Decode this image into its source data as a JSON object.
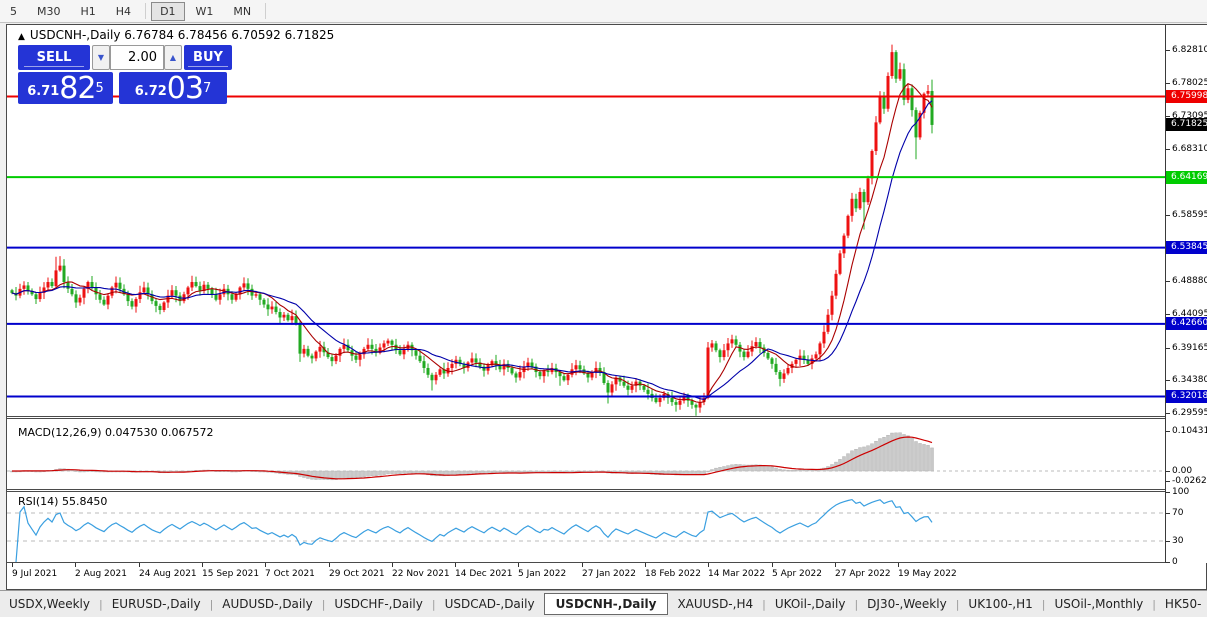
{
  "toolbar": {
    "timeframes": [
      "5",
      "M30",
      "H1",
      "H4",
      "D1",
      "W1",
      "MN"
    ],
    "active": "D1"
  },
  "chart": {
    "title_marker": "▲",
    "symbol_title": "USDCNH-,Daily",
    "ohlc": {
      "open": "6.76784",
      "high": "6.78456",
      "low": "6.70592",
      "close": "6.71825"
    },
    "trade_panel": {
      "sell_label": "SELL",
      "buy_label": "BUY",
      "volume": "2.00",
      "spin_down_icon": "▼",
      "spin_up_icon": "▲",
      "sell_price": {
        "small": "6.71",
        "big": "82",
        "sup": "5"
      },
      "buy_price": {
        "small": "6.72",
        "big": "03",
        "sup": "7"
      }
    },
    "axis_ticks": [
      {
        "price": 6.8281,
        "label": "6.82810"
      },
      {
        "price": 6.78025,
        "label": "6.78025"
      },
      {
        "price": 6.73095,
        "label": "6.73095"
      },
      {
        "price": 6.6831,
        "label": "6.68310"
      },
      {
        "price": 6.63525,
        "label": "6.63525"
      },
      {
        "price": 6.58595,
        "label": "6.58595"
      },
      {
        "price": 6.4888,
        "label": "6.48880"
      },
      {
        "price": 6.44095,
        "label": "6.44095"
      },
      {
        "price": 6.39165,
        "label": "6.39165"
      },
      {
        "price": 6.3438,
        "label": "6.34380"
      },
      {
        "price": 6.29595,
        "label": "6.29595"
      }
    ],
    "hlines": [
      {
        "price": 6.75998,
        "label": "6.75998",
        "color": "#ee0000",
        "text": "#fff"
      },
      {
        "price": 6.64169,
        "label": "6.64169",
        "color": "#00cc00",
        "text": "#fff"
      },
      {
        "price": 6.53845,
        "label": "6.53845",
        "color": "#0000cc",
        "text": "#fff"
      },
      {
        "price": 6.4266,
        "label": "6.42660",
        "color": "#0000cc",
        "text": "#fff"
      },
      {
        "price": 6.32018,
        "label": "6.32018",
        "color": "#0000cc",
        "text": "#fff"
      }
    ],
    "current_price_badge": {
      "price": 6.71825,
      "label": "6.71825",
      "color": "#000000",
      "text": "#fff"
    },
    "date_labels": [
      "9 Jul 2021",
      "2 Aug 2021",
      "24 Aug 2021",
      "15 Sep 2021",
      "7 Oct 2021",
      "29 Oct 2021",
      "22 Nov 2021",
      "14 Dec 2021",
      "5 Jan 2022",
      "27 Jan 2022",
      "18 Feb 2022",
      "14 Mar 2022",
      "5 Apr 2022",
      "27 Apr 2022",
      "19 May 2022"
    ]
  },
  "indicators": {
    "macd": {
      "label": "MACD(12,26,9) 0.047530 0.067572",
      "axis": [
        "0.104313",
        "0.00",
        "-0.02624"
      ],
      "axis_values": [
        0.104313,
        0.0,
        -0.02624
      ]
    },
    "rsi": {
      "label": "RSI(14) 55.8450",
      "axis": [
        "100",
        "70",
        "30",
        "0"
      ],
      "axis_values": [
        100,
        70,
        30,
        0
      ],
      "levels": [
        70,
        30
      ]
    }
  },
  "tabs": {
    "items": [
      "USDX,Weekly",
      "EURUSD-,Daily",
      "AUDUSD-,Daily",
      "USDCHF-,Daily",
      "USDCAD-,Daily",
      "USDCNH-,Daily",
      "XAUUSD-,H4",
      "UKOil-,Daily",
      "DJ30-,Weekly",
      "UK100-,H1",
      "USOil-,Monthly",
      "HK50-"
    ],
    "active": "USDCNH-,Daily",
    "left_arrow": "◂",
    "right_arrow": "▸"
  },
  "chart_data": {
    "type": "candlestick",
    "symbol": "USDCNH-",
    "timeframe": "Daily",
    "conventions": {
      "up_color": "#ee1111",
      "down_color": "#22aa22",
      "note": "red = up, green = down"
    },
    "ylim": [
      6.29595,
      6.86
    ],
    "x_labels": [
      "9 Jul 2021",
      "2 Aug 2021",
      "24 Aug 2021",
      "15 Sep 2021",
      "7 Oct 2021",
      "29 Oct 2021",
      "22 Nov 2021",
      "14 Dec 2021",
      "5 Jan 2022",
      "27 Jan 2022",
      "18 Feb 2022",
      "14 Mar 2022",
      "5 Apr 2022",
      "27 Apr 2022",
      "19 May 2022"
    ],
    "first_open": 6.476,
    "closes": [
      6.472,
      6.468,
      6.478,
      6.483,
      6.475,
      6.47,
      6.463,
      6.472,
      6.48,
      6.488,
      6.482,
      6.505,
      6.512,
      6.488,
      6.478,
      6.47,
      6.458,
      6.465,
      6.478,
      6.488,
      6.48,
      6.47,
      6.462,
      6.455,
      6.468,
      6.48,
      6.487,
      6.478,
      6.47,
      6.46,
      6.452,
      6.463,
      6.473,
      6.48,
      6.47,
      6.46,
      6.453,
      6.447,
      6.458,
      6.468,
      6.476,
      6.468,
      6.46,
      6.47,
      6.48,
      6.488,
      6.482,
      6.475,
      6.484,
      6.478,
      6.47,
      6.462,
      6.47,
      6.478,
      6.47,
      6.462,
      6.47,
      6.48,
      6.486,
      6.478,
      6.468,
      6.47,
      6.462,
      6.455,
      6.448,
      6.452,
      6.444,
      6.436,
      6.44,
      6.432,
      6.438,
      6.428,
      6.383,
      6.39,
      6.38,
      6.376,
      6.386,
      6.393,
      6.385,
      6.378,
      6.372,
      6.38,
      6.39,
      6.396,
      6.388,
      6.38,
      6.374,
      6.382,
      6.39,
      6.396,
      6.39,
      6.384,
      6.392,
      6.398,
      6.402,
      6.396,
      6.388,
      6.382,
      6.39,
      6.396,
      6.388,
      6.38,
      6.372,
      6.362,
      6.352,
      6.344,
      6.352,
      6.36,
      6.354,
      6.362,
      6.368,
      6.374,
      6.368,
      6.362,
      6.37,
      6.376,
      6.37,
      6.364,
      6.358,
      6.366,
      6.372,
      6.366,
      6.36,
      6.368,
      6.362,
      6.354,
      6.348,
      6.356,
      6.364,
      6.37,
      6.364,
      6.356,
      6.35,
      6.358,
      6.356,
      6.362,
      6.356,
      6.35,
      6.344,
      6.352,
      6.36,
      6.366,
      6.36,
      6.354,
      6.348,
      6.356,
      6.362,
      6.356,
      6.34,
      6.326,
      6.338,
      6.348,
      6.342,
      6.336,
      6.33,
      6.336,
      6.342,
      6.336,
      6.33,
      6.324,
      6.318,
      6.312,
      6.318,
      6.324,
      6.318,
      6.312,
      6.308,
      6.314,
      6.32,
      6.314,
      6.308,
      6.304,
      6.312,
      6.318,
      6.392,
      6.398,
      6.388,
      6.378,
      6.388,
      6.398,
      6.404,
      6.396,
      6.386,
      6.378,
      6.386,
      6.394,
      6.4,
      6.392,
      6.384,
      6.376,
      6.368,
      6.356,
      6.346,
      6.354,
      6.362,
      6.368,
      6.374,
      6.38,
      6.374,
      6.368,
      6.376,
      6.382,
      6.398,
      6.415,
      6.44,
      6.468,
      6.5,
      6.53,
      6.556,
      6.585,
      6.61,
      6.596,
      6.62,
      6.605,
      6.64,
      6.68,
      6.722,
      6.76,
      6.742,
      6.79,
      6.825,
      6.786,
      6.8,
      6.755,
      6.772,
      6.74,
      6.7,
      6.736,
      6.764,
      6.768,
      6.71825
    ],
    "wick_overrides": {
      "11": [
        0.02,
        0.002
      ],
      "12": [
        0.014,
        0.002
      ],
      "72": [
        0.004,
        0.012
      ],
      "105": [
        0.003,
        0.015
      ],
      "137": [
        0.003,
        0.014
      ],
      "149": [
        0.004,
        0.016
      ],
      "166": [
        0.003,
        0.01
      ],
      "171": [
        0.002,
        0.012
      ],
      "174": [
        0.008,
        0.002
      ],
      "192": [
        0.003,
        0.011
      ],
      "213": [
        0.004,
        0.04
      ],
      "220": [
        0.011,
        0.004
      ],
      "226": [
        0.004,
        0.032
      ],
      "230": [
        0.0166,
        0.0123
      ]
    },
    "last_bar_ohlc": [
      6.76784,
      6.78456,
      6.70592,
      6.71825
    ],
    "overlays": [
      {
        "name": "MA fast",
        "type": "sma",
        "period": 8,
        "color": "#aa0000"
      },
      {
        "name": "MA slow",
        "type": "sma",
        "period": 16,
        "color": "#0000aa"
      }
    ],
    "macd": {
      "fast": 12,
      "slow": 26,
      "signal": 9,
      "current_macd": 0.04753,
      "current_signal": 0.067572,
      "histogram_color": "#c8c8c8",
      "signal_color": "#cc0000"
    },
    "rsi": {
      "period": 14,
      "current": 55.845,
      "color": "#3a9fe0",
      "levels": [
        70,
        30
      ]
    },
    "hlines": [
      {
        "price": 6.75998,
        "color": "#ee0000"
      },
      {
        "price": 6.64169,
        "color": "#00cc00"
      },
      {
        "price": 6.53845,
        "color": "#0000cc"
      },
      {
        "price": 6.4266,
        "color": "#0000cc"
      },
      {
        "price": 6.32018,
        "color": "#0000cc"
      }
    ]
  }
}
